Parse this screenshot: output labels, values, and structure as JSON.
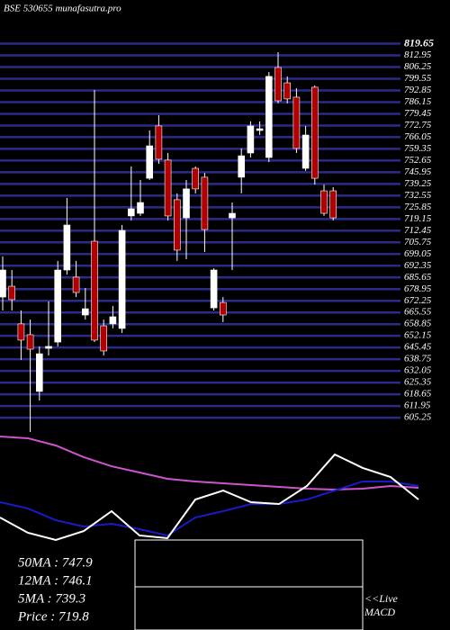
{
  "chart_data": [
    {
      "type": "candlestick",
      "title": "BSE 530655 munafasutra.pro",
      "categories": [
        null,
        null,
        null,
        null,
        null,
        null,
        null,
        null,
        null,
        null,
        null,
        null,
        null,
        null,
        null,
        null,
        null,
        null,
        null,
        null,
        null,
        null,
        null,
        null,
        null,
        null,
        null,
        null,
        null,
        null,
        null,
        null,
        null,
        null,
        null,
        null,
        null
      ],
      "open": [
        674.4,
        680.6,
        659.0,
        652.8,
        620.3,
        645.0,
        648.6,
        689.9,
        685.8,
        664.1,
        706.4,
        657.9,
        659.0,
        656.4,
        720.9,
        722.4,
        742.5,
        772.5,
        752.9,
        730.2,
        719.8,
        748.2,
        743.1,
        668.2,
        671.3,
        719.8,
        743.1,
        757.0,
        769.9,
        754.4,
        806.0,
        797.2,
        789.0,
        748.2,
        794.7,
        735.3,
        735.3
      ],
      "high": [
        697.7,
        689.9,
        666.7,
        661.5,
        646.1,
        671.9,
        695.1,
        731.2,
        695.1,
        679.6,
        793.1,
        661.5,
        669.3,
        715.7,
        749.3,
        741.5,
        769.9,
        778.7,
        757.0,
        733.8,
        741.5,
        749.3,
        745.6,
        690.9,
        674.4,
        728.6,
        759.6,
        775.1,
        775.1,
        803.4,
        814.8,
        800.9,
        794.1,
        772.5,
        795.7,
        738.9,
        737.4
      ],
      "low": [
        666.7,
        666.7,
        638.3,
        597.0,
        615.1,
        640.9,
        646.1,
        687.3,
        674.4,
        661.5,
        648.6,
        640.9,
        656.4,
        653.8,
        718.3,
        720.9,
        741.5,
        750.8,
        718.3,
        695.1,
        696.1,
        733.8,
        700.2,
        666.7,
        660.0,
        689.9,
        733.8,
        754.4,
        767.3,
        751.8,
        785.4,
        785.4,
        757.0,
        746.7,
        738.9,
        720.9,
        718.3
      ],
      "close": [
        689.9,
        672.9,
        649.7,
        644.5,
        641.9,
        646.1,
        689.9,
        715.7,
        677.0,
        667.7,
        649.7,
        643.5,
        663.1,
        712.6,
        725.0,
        728.6,
        761.1,
        753.4,
        720.9,
        701.3,
        736.4,
        736.4,
        713.1,
        689.9,
        664.1,
        722.4,
        755.4,
        772.5,
        770.9,
        800.9,
        786.9,
        788.0,
        759.6,
        767.3,
        742.5,
        722.4,
        719.8
      ],
      "up_color": "#ffffff",
      "down_color": "#b00000",
      "ylim": [
        596,
        822
      ],
      "yticks": [
        819.65,
        812.95,
        806.25,
        799.55,
        792.85,
        786.15,
        779.45,
        772.75,
        766.05,
        759.35,
        752.65,
        745.95,
        739.25,
        732.55,
        725.85,
        719.15,
        712.45,
        705.75,
        699.05,
        692.35,
        685.65,
        678.95,
        672.25,
        665.55,
        658.85,
        652.15,
        645.45,
        638.75,
        632.05,
        625.35,
        618.65,
        611.95,
        605.25
      ],
      "grid": true,
      "grid_color": "#2b2b8c"
    },
    {
      "type": "line",
      "x": [
        0,
        1,
        2,
        3,
        4,
        5,
        6,
        7,
        8,
        9,
        10,
        11,
        12,
        13,
        14,
        15
      ],
      "xlim": [
        0,
        15
      ],
      "ylim": [
        0,
        100
      ],
      "series": [
        {
          "color": "#cc55cc",
          "values": [
            95.8,
            94.2,
            87.5,
            76.7,
            68.3,
            62.5,
            56.7,
            54.2,
            52.5,
            50.8,
            49.2,
            47.5,
            46.7,
            47.5,
            50.0,
            48.3
          ]
        },
        {
          "color": "#1a1acc",
          "values": [
            35.0,
            29.2,
            18.3,
            12.5,
            15.0,
            10.0,
            4.2,
            20.8,
            26.7,
            33.3,
            33.3,
            37.5,
            45.8,
            54.2,
            54.2,
            50.0
          ]
        },
        {
          "color": "#ffffff",
          "values": [
            20.8,
            6.7,
            0,
            8.3,
            26.7,
            4.2,
            1.7,
            37.5,
            45.8,
            35.0,
            33.3,
            50.0,
            79.2,
            66.7,
            58.3,
            37.5
          ]
        }
      ],
      "legend": [
        "50MA : 747.9",
        "12MA : 746.1",
        "5MA : 739.3",
        "Price  : 719.8"
      ],
      "annotation": [
        "<<Live",
        "MACD"
      ]
    }
  ]
}
